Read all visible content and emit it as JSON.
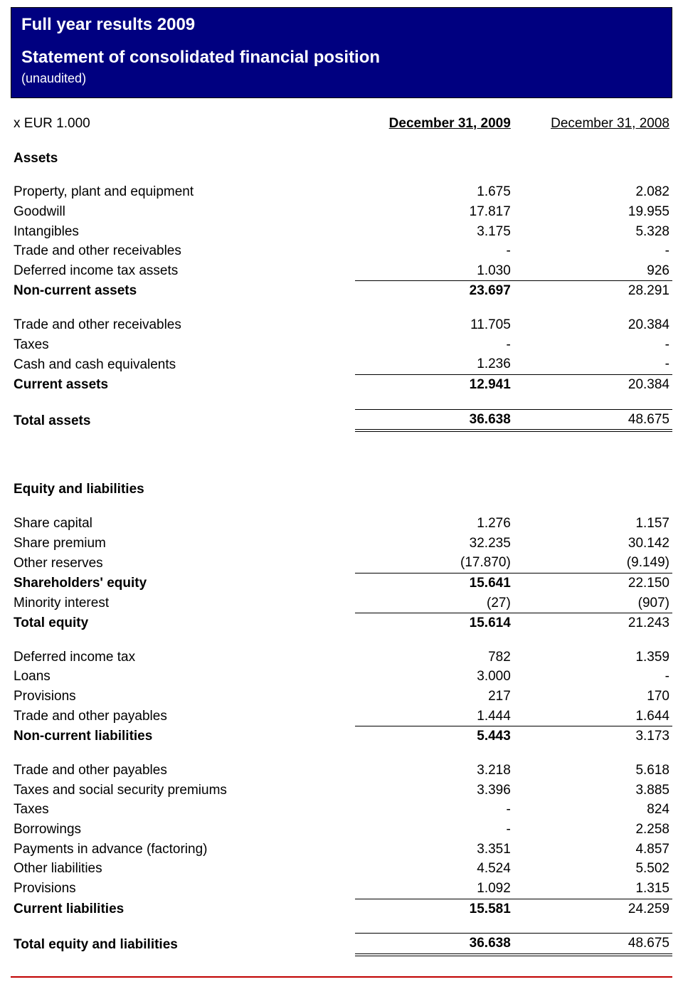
{
  "colors": {
    "header_bg": "#000080",
    "header_text": "#ffffff",
    "text": "#000000",
    "footer_rule": "#c00000",
    "background": "#ffffff"
  },
  "typography": {
    "font_family": "Verdana",
    "body_fontsize_pt": 14,
    "header_title_fontsize_pt": 18
  },
  "header": {
    "title1": "Full year results 2009",
    "title2": "Statement of consolidated financial position",
    "subtitle": "(unaudited)"
  },
  "columns": {
    "unit": "x EUR 1.000",
    "col1": "December 31, 2009",
    "col2": "December 31, 2008"
  },
  "assets": {
    "heading": "Assets",
    "rows": {
      "ppe": {
        "label": "Property, plant and equipment",
        "c1": "1.675",
        "c2": "2.082"
      },
      "goodwill": {
        "label": "Goodwill",
        "c1": "17.817",
        "c2": "19.955"
      },
      "intangibles": {
        "label": "Intangibles",
        "c1": "3.175",
        "c2": "5.328"
      },
      "trade_recv_nc": {
        "label": "Trade and other receivables",
        "c1": "-",
        "c2": "-"
      },
      "def_tax_assets": {
        "label": "Deferred income tax assets",
        "c1": "1.030",
        "c2": "926"
      },
      "non_current": {
        "label": "Non-current assets",
        "c1": "23.697",
        "c2": "28.291"
      },
      "trade_recv_c": {
        "label": "Trade and other receivables",
        "c1": "11.705",
        "c2": "20.384"
      },
      "taxes": {
        "label": "Taxes",
        "c1": "-",
        "c2": "-"
      },
      "cash": {
        "label": "Cash and cash equivalents",
        "c1": "1.236",
        "c2": "-"
      },
      "current": {
        "label": "Current assets",
        "c1": "12.941",
        "c2": "20.384"
      },
      "total": {
        "label": "Total assets",
        "c1": "36.638",
        "c2": "48.675"
      }
    }
  },
  "equity_liab": {
    "heading": "Equity and liabilities",
    "rows": {
      "share_cap": {
        "label": "Share capital",
        "c1": "1.276",
        "c2": "1.157"
      },
      "share_prem": {
        "label": "Share premium",
        "c1": "32.235",
        "c2": "30.142"
      },
      "other_res": {
        "label": "Other reserves",
        "c1": "(17.870)",
        "c2": "(9.149)"
      },
      "sh_equity": {
        "label": "Shareholders' equity",
        "c1": "15.641",
        "c2": "22.150"
      },
      "minority": {
        "label": "Minority interest",
        "c1": "(27)",
        "c2": "(907)"
      },
      "total_equity": {
        "label": "Total equity",
        "c1": "15.614",
        "c2": "21.243"
      },
      "def_inc_tax": {
        "label": "Deferred income tax",
        "c1": "782",
        "c2": "1.359"
      },
      "loans": {
        "label": "Loans",
        "c1": "3.000",
        "c2": "-"
      },
      "provisions_nc": {
        "label": "Provisions",
        "c1": "217",
        "c2": "170"
      },
      "trade_pay_nc": {
        "label": "Trade and other payables",
        "c1": "1.444",
        "c2": "1.644"
      },
      "nc_liab": {
        "label": "Non-current liabilities",
        "c1": "5.443",
        "c2": "3.173"
      },
      "trade_pay_c": {
        "label": "Trade and other payables",
        "c1": "3.218",
        "c2": "5.618"
      },
      "tax_soc": {
        "label": "Taxes and social security premiums",
        "c1": "3.396",
        "c2": "3.885"
      },
      "taxes_c": {
        "label": "Taxes",
        "c1": "-",
        "c2": "824"
      },
      "borrowings": {
        "label": "Borrowings",
        "c1": "-",
        "c2": "2.258"
      },
      "pay_advance": {
        "label": "Payments in advance (factoring)",
        "c1": "3.351",
        "c2": "4.857"
      },
      "other_liab": {
        "label": "Other liabilities",
        "c1": "4.524",
        "c2": "5.502"
      },
      "provisions_c": {
        "label": "Provisions",
        "c1": "1.092",
        "c2": "1.315"
      },
      "cur_liab": {
        "label": "Current liabilities",
        "c1": "15.581",
        "c2": "24.259"
      },
      "total": {
        "label": "Total equity and liabilities",
        "c1": "36.638",
        "c2": "48.675"
      }
    }
  }
}
